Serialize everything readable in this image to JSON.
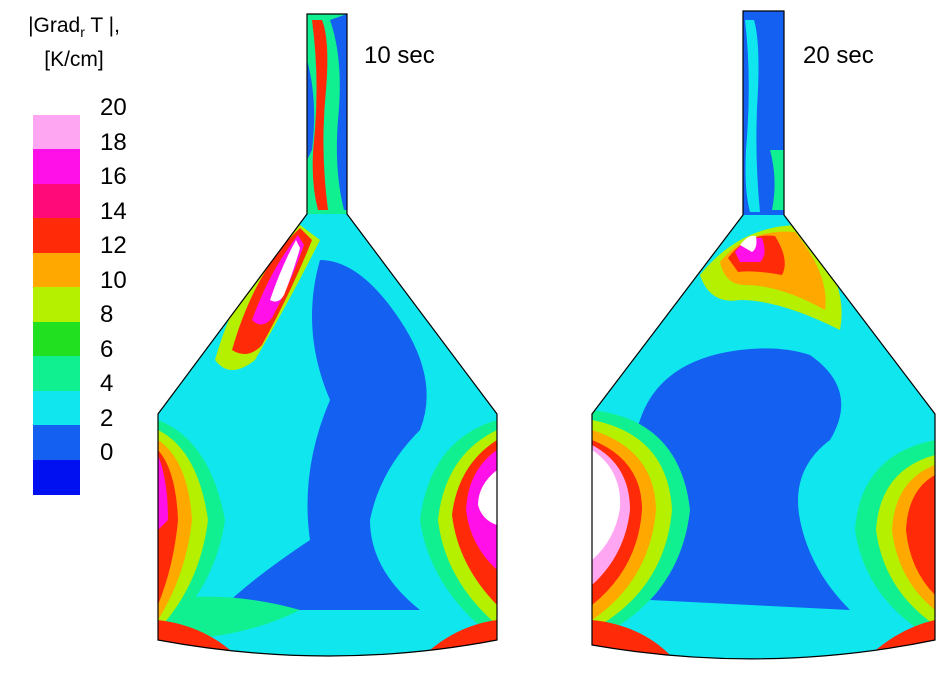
{
  "legend": {
    "title_line1_pre": "|Grad",
    "title_sub": "r",
    "title_line1_post": " T |,",
    "title_line2": "[K/cm]",
    "ticks": [
      "20",
      "18",
      "16",
      "14",
      "12",
      "10",
      "8",
      "6",
      "4",
      "2",
      "0"
    ],
    "band_colors": [
      "#ffffff",
      "#ffa6f2",
      "#ff10e8",
      "#ff0a78",
      "#ff2a08",
      "#ffa800",
      "#b4f000",
      "#20e020",
      "#10f090",
      "#10e6ee",
      "#1460f0",
      "#0010f0"
    ]
  },
  "panels": [
    {
      "time_label": "10 sec"
    },
    {
      "time_label": "20 sec"
    }
  ],
  "colors": {
    "background": "#ffffff",
    "outline": "#000000"
  }
}
